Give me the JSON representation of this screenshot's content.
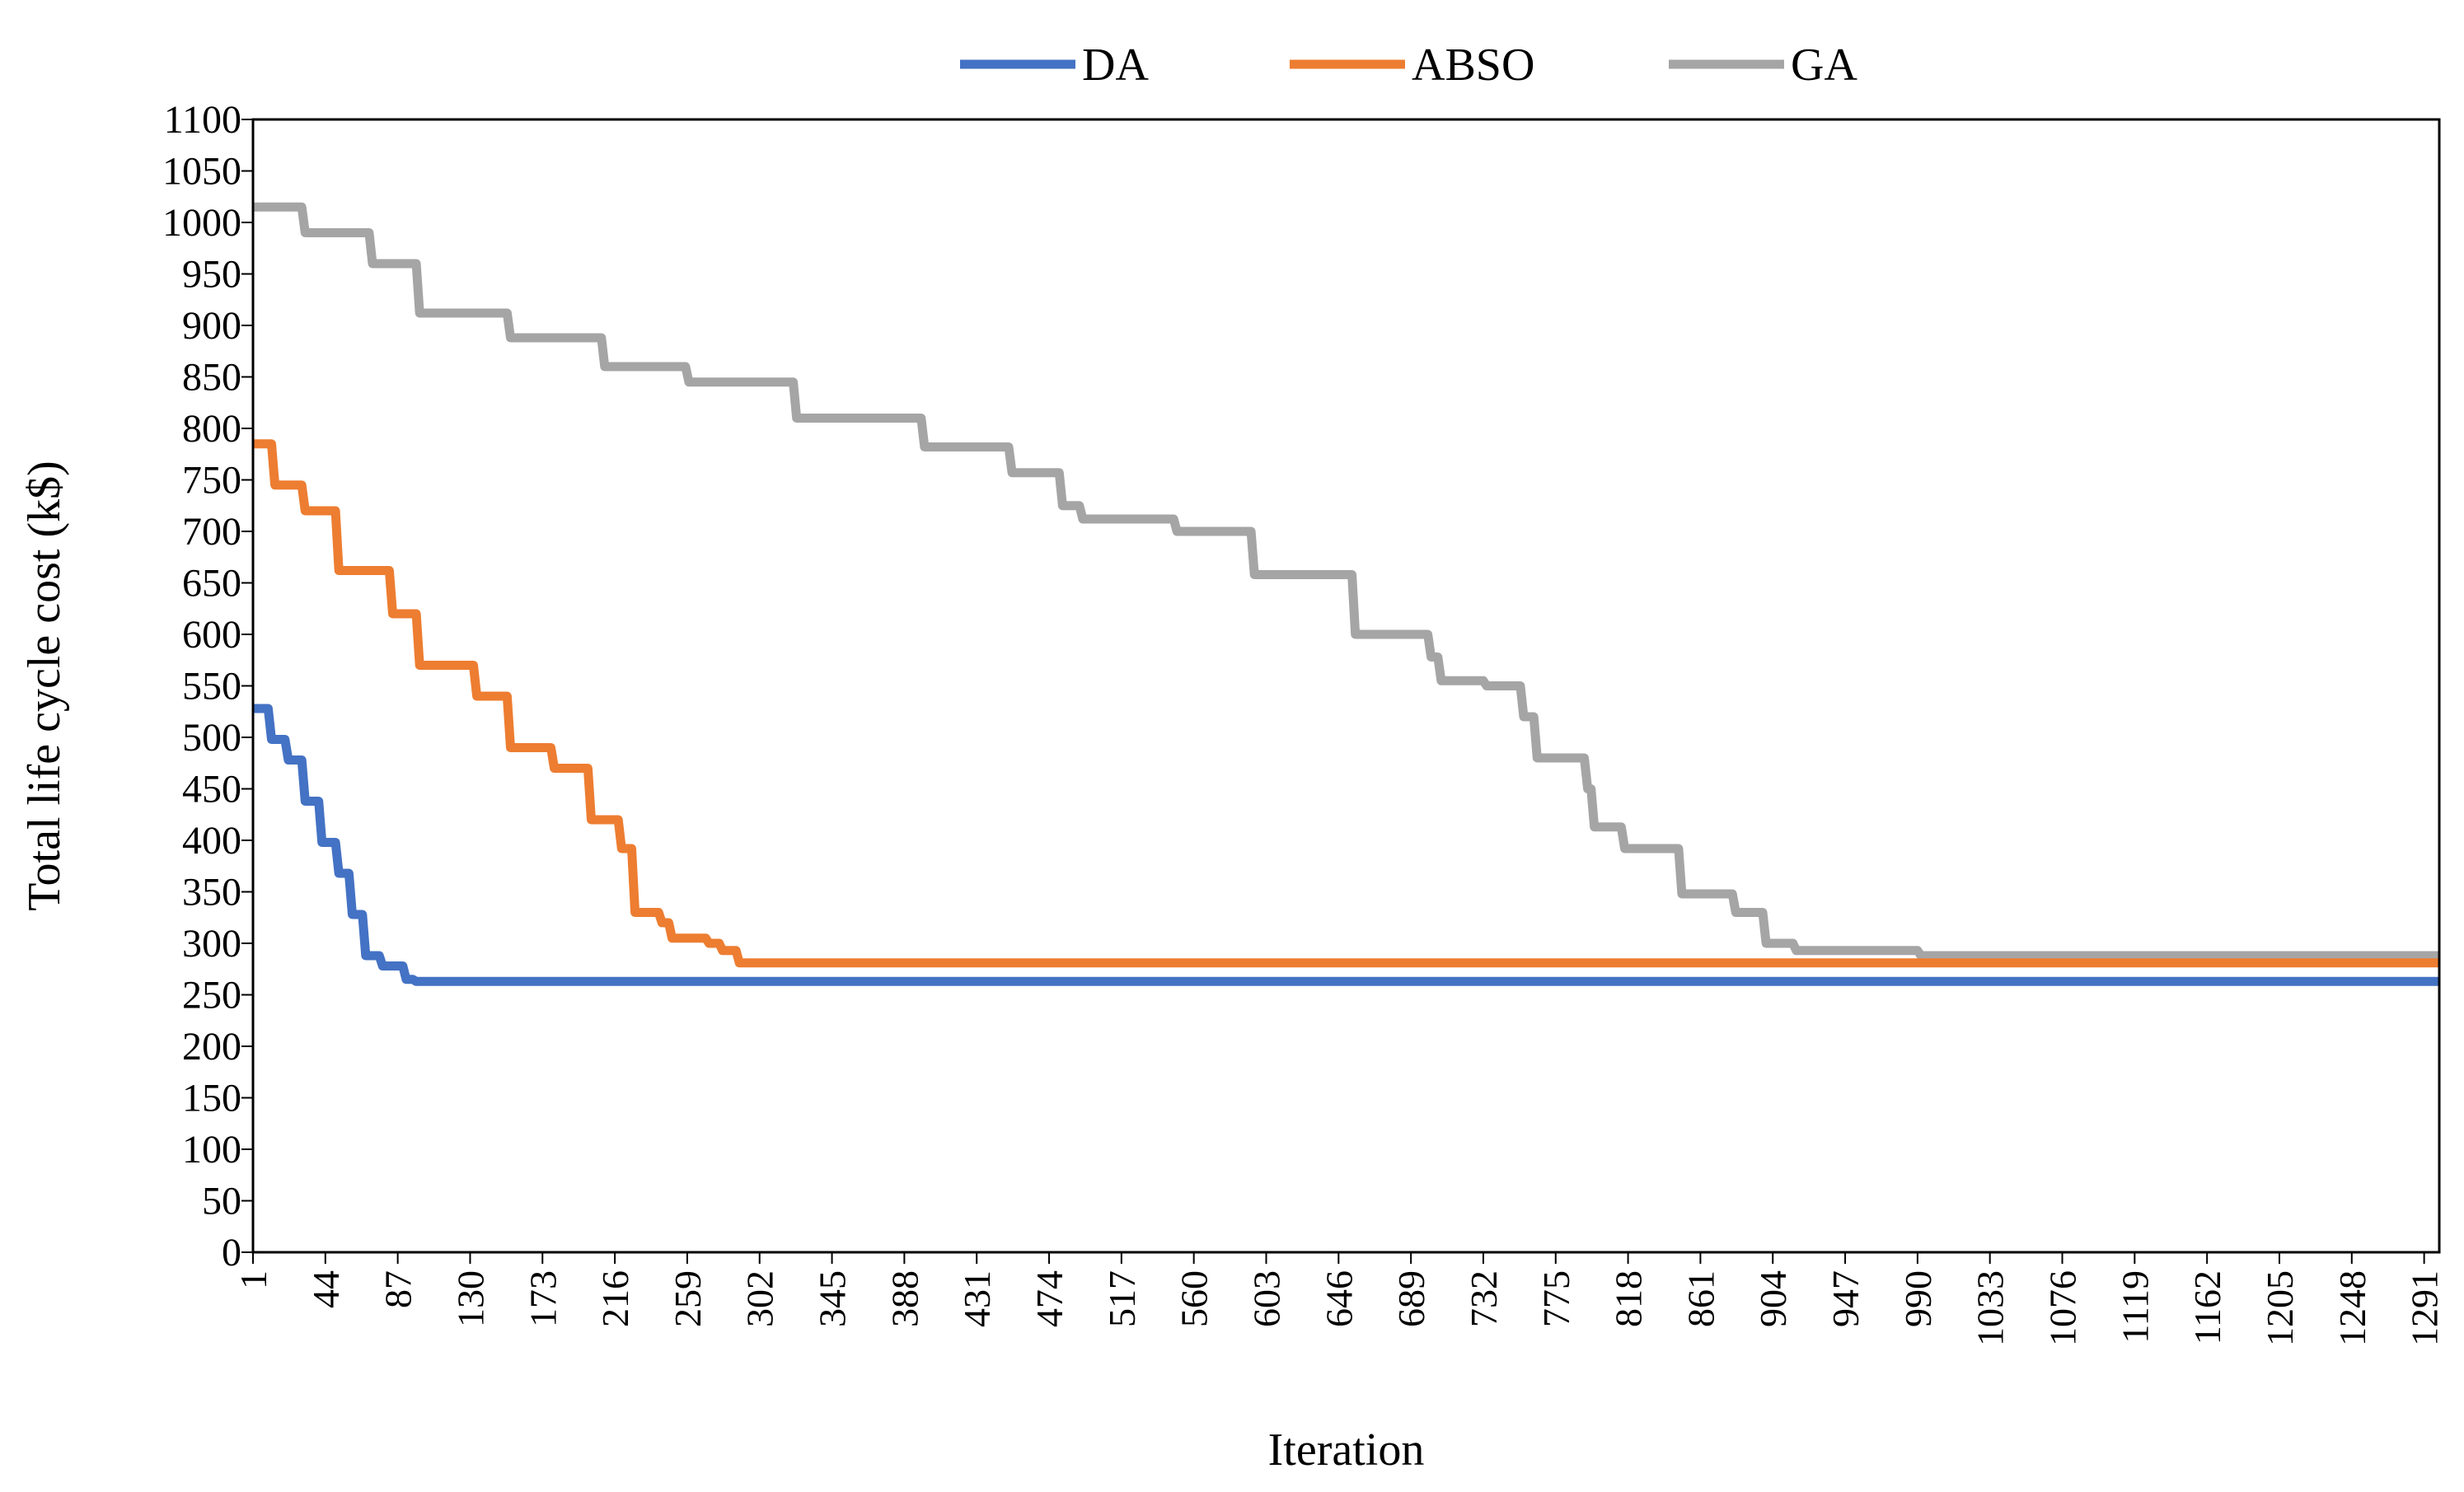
{
  "chart_data": {
    "type": "line",
    "title": "",
    "xlabel": "Iteration",
    "ylabel": "Total life cycle cost (k$)",
    "xlim": [
      1,
      1300
    ],
    "ylim": [
      0,
      1100
    ],
    "ytick_step": 50,
    "x_ticks": [
      "1",
      "44",
      "87",
      "130",
      "173",
      "216",
      "259",
      "302",
      "345",
      "388",
      "431",
      "474",
      "517",
      "560",
      "603",
      "646",
      "689",
      "732",
      "775",
      "818",
      "861",
      "904",
      "947",
      "990",
      "1033",
      "1076",
      "1119",
      "1162",
      "1205",
      "1248",
      "1291"
    ],
    "y_ticks": [
      "0",
      "50",
      "100",
      "150",
      "200",
      "250",
      "300",
      "350",
      "400",
      "450",
      "500",
      "550",
      "600",
      "650",
      "700",
      "750",
      "800",
      "850",
      "900",
      "950",
      "1000",
      "1050",
      "1100"
    ],
    "legend_position": "top-center",
    "grid": false,
    "series": [
      {
        "name": "DA",
        "color": "#4472C4",
        "points": [
          [
            1,
            528
          ],
          [
            10,
            528
          ],
          [
            12,
            498
          ],
          [
            20,
            498
          ],
          [
            22,
            478
          ],
          [
            30,
            478
          ],
          [
            32,
            438
          ],
          [
            40,
            438
          ],
          [
            42,
            398
          ],
          [
            50,
            398
          ],
          [
            52,
            368
          ],
          [
            58,
            368
          ],
          [
            60,
            328
          ],
          [
            66,
            328
          ],
          [
            68,
            288
          ],
          [
            76,
            288
          ],
          [
            78,
            278
          ],
          [
            90,
            278
          ],
          [
            92,
            265
          ],
          [
            96,
            265
          ],
          [
            98,
            263
          ],
          [
            1300,
            263
          ]
        ]
      },
      {
        "name": "ABSO",
        "color": "#ED7D31",
        "points": [
          [
            1,
            785
          ],
          [
            12,
            785
          ],
          [
            14,
            745
          ],
          [
            30,
            745
          ],
          [
            32,
            720
          ],
          [
            50,
            720
          ],
          [
            52,
            662
          ],
          [
            82,
            662
          ],
          [
            84,
            620
          ],
          [
            98,
            620
          ],
          [
            100,
            570
          ],
          [
            132,
            570
          ],
          [
            134,
            540
          ],
          [
            152,
            540
          ],
          [
            154,
            490
          ],
          [
            178,
            490
          ],
          [
            180,
            470
          ],
          [
            200,
            470
          ],
          [
            202,
            420
          ],
          [
            218,
            420
          ],
          [
            220,
            392
          ],
          [
            226,
            392
          ],
          [
            228,
            330
          ],
          [
            242,
            330
          ],
          [
            244,
            320
          ],
          [
            248,
            320
          ],
          [
            250,
            305
          ],
          [
            270,
            305
          ],
          [
            272,
            300
          ],
          [
            278,
            300
          ],
          [
            280,
            293
          ],
          [
            288,
            293
          ],
          [
            290,
            281
          ],
          [
            1300,
            281
          ]
        ]
      },
      {
        "name": "GA",
        "color": "#A5A5A5",
        "points": [
          [
            1,
            1015
          ],
          [
            30,
            1015
          ],
          [
            32,
            990
          ],
          [
            70,
            990
          ],
          [
            72,
            960
          ],
          [
            98,
            960
          ],
          [
            100,
            912
          ],
          [
            152,
            912
          ],
          [
            154,
            888
          ],
          [
            208,
            888
          ],
          [
            210,
            860
          ],
          [
            258,
            860
          ],
          [
            260,
            845
          ],
          [
            322,
            845
          ],
          [
            324,
            810
          ],
          [
            398,
            810
          ],
          [
            400,
            782
          ],
          [
            450,
            782
          ],
          [
            452,
            757
          ],
          [
            480,
            757
          ],
          [
            482,
            725
          ],
          [
            492,
            725
          ],
          [
            494,
            712
          ],
          [
            548,
            712
          ],
          [
            550,
            700
          ],
          [
            594,
            700
          ],
          [
            596,
            658
          ],
          [
            654,
            658
          ],
          [
            656,
            600
          ],
          [
            699,
            600
          ],
          [
            701,
            578
          ],
          [
            705,
            578
          ],
          [
            707,
            555
          ],
          [
            732,
            555
          ],
          [
            734,
            550
          ],
          [
            754,
            550
          ],
          [
            756,
            520
          ],
          [
            762,
            520
          ],
          [
            764,
            480
          ],
          [
            792,
            480
          ],
          [
            794,
            450
          ],
          [
            796,
            450
          ],
          [
            798,
            413
          ],
          [
            814,
            413
          ],
          [
            816,
            392
          ],
          [
            848,
            392
          ],
          [
            850,
            348
          ],
          [
            880,
            348
          ],
          [
            882,
            330
          ],
          [
            898,
            330
          ],
          [
            900,
            300
          ],
          [
            916,
            300
          ],
          [
            918,
            293
          ],
          [
            990,
            293
          ],
          [
            992,
            288
          ],
          [
            1300,
            288
          ]
        ]
      }
    ]
  }
}
